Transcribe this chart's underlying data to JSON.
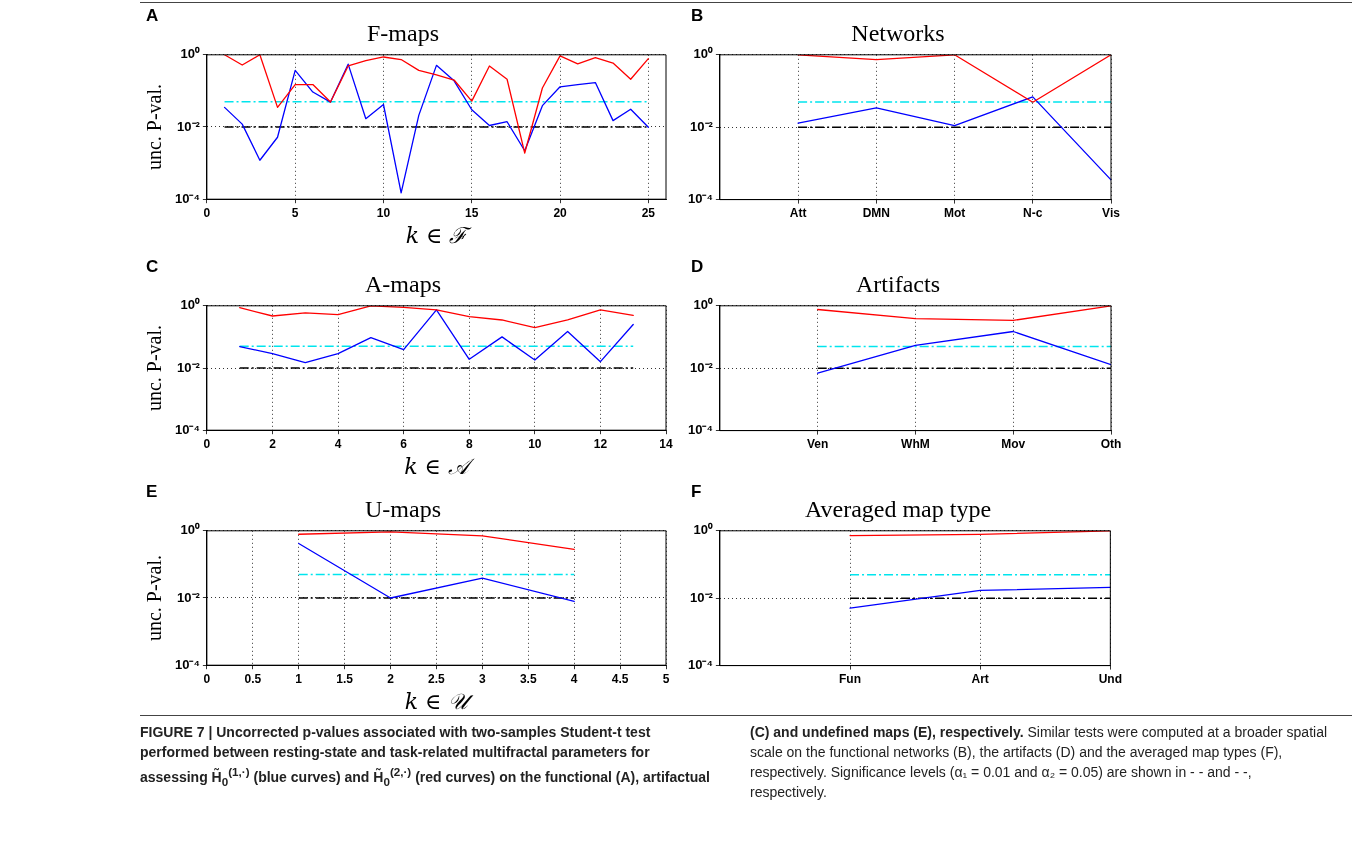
{
  "chart_data": [
    {
      "type": "line",
      "title": "F-maps",
      "xlabel": "k ∈ ℱ",
      "ylabel": "unc. P-val.",
      "annotations": [
        "A",
        "FIGURE 7 | Uncorrected p-values associated with two-samples Student-t test performed between resting-state and task-related multifractal parameters for assessing H̃$_{0}$$^{(1,·)}$ (blue curves) and H̃$_{0}$$^{(2,·)}$ (red curves) on the functional (A), artifactual (C) and undefined maps (E), respectively.",
        "Similar tests were computed at a broader spatial scale on the functional networks (B), the artifacts (D) and the averaged map types (F), respectively. Significance levels (α₁ = 0.01 and α₂ = 0.05) are shown in - - and - -, respectively."
      ],
      "x": [
        1,
        2,
        3,
        4,
        5,
        6,
        7,
        8,
        9,
        10,
        11,
        12,
        13,
        14,
        15,
        16,
        17,
        18,
        19,
        20,
        21,
        22,
        23,
        24,
        25
      ],
      "xlim": [
        0,
        26
      ],
      "xticks": [
        0,
        5,
        10,
        15,
        20,
        25
      ],
      "series": [
        {
          "color": "#ff0000",
          "values": [
            1,
            0.52,
            1,
            0.035,
            0.15,
            0.15,
            0.049,
            0.49,
            0.69,
            0.87,
            0.74,
            0.37,
            0.28,
            0.2,
            0.052,
            0.49,
            0.21,
            0.0019,
            0.12,
            0.93,
            0.56,
            0.83,
            0.59,
            0.21,
            0.78
          ]
        },
        {
          "color": "#0000ff",
          "values": [
            0.035,
            0.012,
            0.0012,
            0.0052,
            0.37,
            0.093,
            0.049,
            0.55,
            0.017,
            0.042,
            0.00015,
            0.021,
            0.51,
            0.19,
            0.03,
            0.011,
            0.014,
            0.0022,
            0.039,
            0.13,
            0.15,
            0.17,
            0.015,
            0.031,
            0.0098
          ]
        }
      ],
      "log": "y",
      "ylim": [
        0.0001,
        1
      ],
      "yticks": [
        {
          "value": 0.0001,
          "label": "10⁻⁴"
        },
        {
          "value": 0.01,
          "label": "10⁻²"
        },
        {
          "value": 1,
          "label": "10⁰"
        }
      ],
      "grid": true,
      "legend": false,
      "marker": "none",
      "line_style": "solid",
      "ref_lines": [
        {
          "axis": "y",
          "value": 0.05,
          "color": "#00e5ee",
          "line_style": "dashed"
        },
        {
          "axis": "y",
          "value": 0.01,
          "color": "#000000",
          "line_style": "dashed"
        }
      ]
    },
    {
      "type": "line",
      "title": "Networks",
      "annotations": [
        "B"
      ],
      "categories": [
        "Att",
        "DMN",
        "Mot",
        "N-c",
        "Vis"
      ],
      "series": [
        {
          "color": "#ff0000",
          "values": [
            1,
            0.74,
            1,
            0.049,
            1
          ]
        },
        {
          "color": "#0000ff",
          "values": [
            0.013,
            0.034,
            0.011,
            0.069,
            0.00035
          ]
        }
      ],
      "log": "y",
      "ylim": [
        0.0001,
        1
      ],
      "yticks": [
        {
          "value": 0.0001,
          "label": "10⁻⁴"
        },
        {
          "value": 0.01,
          "label": "10⁻²"
        },
        {
          "value": 1,
          "label": "10⁰"
        }
      ],
      "grid": true,
      "legend": false,
      "marker": "none",
      "line_style": "solid",
      "ref_lines": [
        {
          "axis": "y",
          "value": 0.05,
          "color": "#00e5ee",
          "line_style": "dashed"
        },
        {
          "axis": "y",
          "value": 0.01,
          "color": "#000000",
          "line_style": "dashed"
        }
      ]
    },
    {
      "type": "line",
      "title": "A-maps",
      "xlabel": "k ∈ 𝒜",
      "ylabel": "unc. P-val.",
      "annotations": [
        "C"
      ],
      "x": [
        1,
        2,
        3,
        4,
        5,
        6,
        7,
        8,
        9,
        10,
        11,
        12,
        13
      ],
      "xlim": [
        0,
        14
      ],
      "xticks": [
        0,
        2,
        4,
        6,
        8,
        10,
        12,
        14
      ],
      "series": [
        {
          "color": "#ff0000",
          "values": [
            0.87,
            0.47,
            0.59,
            0.52,
            1,
            0.89,
            0.74,
            0.45,
            0.35,
            0.2,
            0.35,
            0.74,
            0.49
          ]
        },
        {
          "color": "#0000ff",
          "values": [
            0.049,
            0.029,
            0.015,
            0.029,
            0.095,
            0.039,
            0.74,
            0.019,
            0.1,
            0.018,
            0.15,
            0.016,
            0.25
          ]
        }
      ],
      "log": "y",
      "ylim": [
        0.0001,
        1
      ],
      "yticks": [
        {
          "value": 0.0001,
          "label": "10⁻⁴"
        },
        {
          "value": 0.01,
          "label": "10⁻²"
        },
        {
          "value": 1,
          "label": "10⁰"
        }
      ],
      "grid": true,
      "legend": false,
      "marker": "none",
      "line_style": "solid",
      "ref_lines": [
        {
          "axis": "y",
          "value": 0.05,
          "color": "#00e5ee",
          "line_style": "dashed"
        },
        {
          "axis": "y",
          "value": 0.01,
          "color": "#000000",
          "line_style": "dashed"
        }
      ]
    },
    {
      "type": "line",
      "title": "Artifacts",
      "annotations": [
        "D"
      ],
      "categories": [
        "Ven",
        "WhM",
        "Mov",
        "Oth"
      ],
      "series": [
        {
          "color": "#ff0000",
          "values": [
            0.76,
            0.39,
            0.34,
            1
          ]
        },
        {
          "color": "#0000ff",
          "values": [
            0.0069,
            0.054,
            0.15,
            0.013
          ]
        }
      ],
      "log": "y",
      "ylim": [
        0.0001,
        1
      ],
      "yticks": [
        {
          "value": 0.0001,
          "label": "10⁻⁴"
        },
        {
          "value": 0.01,
          "label": "10⁻²"
        },
        {
          "value": 1,
          "label": "10⁰"
        }
      ],
      "grid": true,
      "legend": false,
      "marker": "none",
      "line_style": "solid",
      "ref_lines": [
        {
          "axis": "y",
          "value": 0.05,
          "color": "#00e5ee",
          "line_style": "dashed"
        },
        {
          "axis": "y",
          "value": 0.01,
          "color": "#000000",
          "line_style": "dashed"
        }
      ]
    },
    {
      "type": "line",
      "title": "U-maps",
      "xlabel": "k ∈ 𝒰",
      "ylabel": "unc. P-val.",
      "annotations": [
        "E"
      ],
      "x": [
        1,
        2,
        3,
        4
      ],
      "xlim": [
        0,
        5
      ],
      "xticks": [
        0,
        0.5,
        1,
        1.5,
        2,
        2.5,
        3,
        3.5,
        4,
        4.5,
        5
      ],
      "series": [
        {
          "color": "#ff0000",
          "values": [
            0.79,
            0.93,
            0.71,
            0.28
          ]
        },
        {
          "color": "#0000ff",
          "values": [
            0.42,
            0.01,
            0.039,
            0.0079
          ]
        }
      ],
      "log": "y",
      "ylim": [
        0.0001,
        1
      ],
      "yticks": [
        {
          "value": 0.0001,
          "label": "10⁻⁴"
        },
        {
          "value": 0.01,
          "label": "10⁻²"
        },
        {
          "value": 1,
          "label": "10⁰"
        }
      ],
      "grid": true,
      "legend": false,
      "marker": "none",
      "line_style": "solid",
      "ref_lines": [
        {
          "axis": "y",
          "value": 0.05,
          "color": "#00e5ee",
          "line_style": "dashed"
        },
        {
          "axis": "y",
          "value": 0.01,
          "color": "#000000",
          "line_style": "dashed"
        }
      ]
    },
    {
      "type": "line",
      "title": "Averaged map type",
      "annotations": [
        "F"
      ],
      "categories": [
        "Fun",
        "Art",
        "Und"
      ],
      "series": [
        {
          "color": "#ff0000",
          "values": [
            0.72,
            0.78,
            1
          ]
        },
        {
          "color": "#0000ff",
          "values": [
            0.0051,
            0.017,
            0.021
          ]
        }
      ],
      "log": "y",
      "ylim": [
        0.0001,
        1
      ],
      "yticks": [
        {
          "value": 0.0001,
          "label": "10⁻⁴"
        },
        {
          "value": 0.01,
          "label": "10⁻²"
        },
        {
          "value": 1,
          "label": "10⁰"
        }
      ],
      "grid": true,
      "legend": false,
      "marker": "none",
      "line_style": "solid",
      "ref_lines": [
        {
          "axis": "y",
          "value": 0.05,
          "color": "#00e5ee",
          "line_style": "dashed"
        },
        {
          "axis": "y",
          "value": 0.01,
          "color": "#000000",
          "line_style": "dashed"
        }
      ]
    }
  ]
}
